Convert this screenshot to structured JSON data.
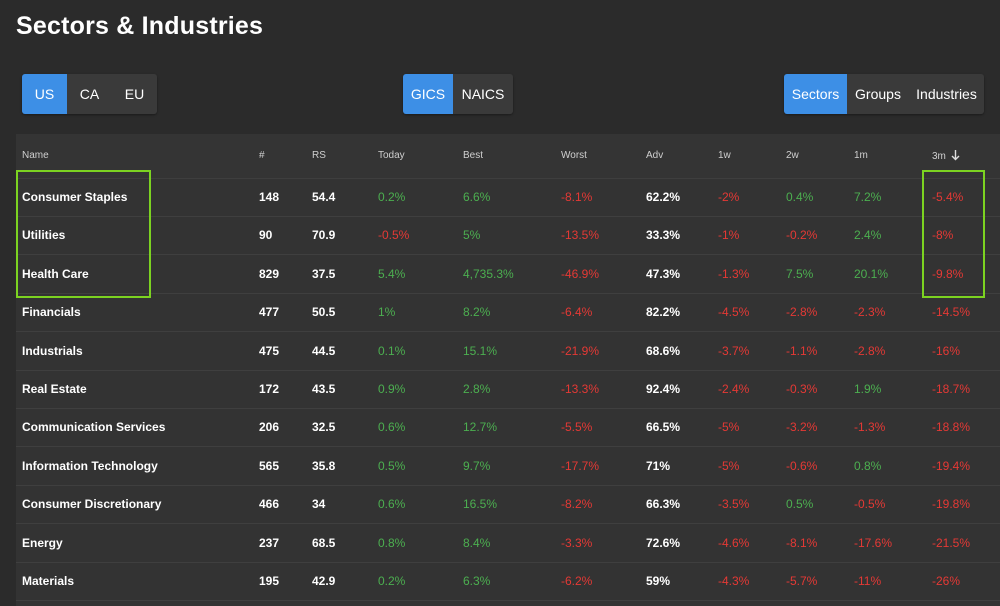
{
  "page": {
    "title": "Sectors & Industries"
  },
  "region_tabs": [
    {
      "label": "US",
      "active": true
    },
    {
      "label": "CA",
      "active": false
    },
    {
      "label": "EU",
      "active": false
    }
  ],
  "classification_tabs": [
    {
      "label": "GICS",
      "active": true
    },
    {
      "label": "NAICS",
      "active": false
    }
  ],
  "view_tabs": [
    {
      "label": "Sectors",
      "active": true
    },
    {
      "label": "Groups",
      "active": false
    },
    {
      "label": "Industries",
      "active": false
    }
  ],
  "table": {
    "columns": [
      "Name",
      "#",
      "RS",
      "Today",
      "Best",
      "Worst",
      "Adv",
      "1w",
      "2w",
      "1m",
      "3m"
    ],
    "sort": {
      "column": "3m",
      "direction": "desc",
      "icon": "arrow-down-icon"
    },
    "rows": [
      [
        "Consumer Staples",
        "148",
        "54.4",
        "0.2%",
        "6.6%",
        "-8.1%",
        "62.2%",
        "-2%",
        "0.4%",
        "7.2%",
        "-5.4%"
      ],
      [
        "Utilities",
        "90",
        "70.9",
        "-0.5%",
        "5%",
        "-13.5%",
        "33.3%",
        "-1%",
        "-0.2%",
        "2.4%",
        "-8%"
      ],
      [
        "Health Care",
        "829",
        "37.5",
        "5.4%",
        "4,735.3%",
        "-46.9%",
        "47.3%",
        "-1.3%",
        "7.5%",
        "20.1%",
        "-9.8%"
      ],
      [
        "Financials",
        "477",
        "50.5",
        "1%",
        "8.2%",
        "-6.4%",
        "82.2%",
        "-4.5%",
        "-2.8%",
        "-2.3%",
        "-14.5%"
      ],
      [
        "Industrials",
        "475",
        "44.5",
        "0.1%",
        "15.1%",
        "-21.9%",
        "68.6%",
        "-3.7%",
        "-1.1%",
        "-2.8%",
        "-16%"
      ],
      [
        "Real Estate",
        "172",
        "43.5",
        "0.9%",
        "2.8%",
        "-13.3%",
        "92.4%",
        "-2.4%",
        "-0.3%",
        "1.9%",
        "-18.7%"
      ],
      [
        "Communication Services",
        "206",
        "32.5",
        "0.6%",
        "12.7%",
        "-5.5%",
        "66.5%",
        "-5%",
        "-3.2%",
        "-1.3%",
        "-18.8%"
      ],
      [
        "Information Technology",
        "565",
        "35.8",
        "0.5%",
        "9.7%",
        "-17.7%",
        "71%",
        "-5%",
        "-0.6%",
        "0.8%",
        "-19.4%"
      ],
      [
        "Consumer Discretionary",
        "466",
        "34",
        "0.6%",
        "16.5%",
        "-8.2%",
        "66.3%",
        "-3.5%",
        "0.5%",
        "-0.5%",
        "-19.8%"
      ],
      [
        "Energy",
        "237",
        "68.5",
        "0.8%",
        "8.4%",
        "-3.3%",
        "72.6%",
        "-4.6%",
        "-8.1%",
        "-17.6%",
        "-21.5%"
      ],
      [
        "Materials",
        "195",
        "42.9",
        "0.2%",
        "6.3%",
        "-6.2%",
        "59%",
        "-4.3%",
        "-5.7%",
        "-11%",
        "-26%"
      ]
    ]
  },
  "highlights": {
    "color": "#7cd321",
    "rows": [
      "Consumer Staples",
      "Utilities",
      "Health Care"
    ],
    "column": "3m"
  },
  "colors": {
    "accent": "#3d8fe6",
    "positive": "#4caf50",
    "negative": "#e53935",
    "background": "#2b2b2b"
  }
}
